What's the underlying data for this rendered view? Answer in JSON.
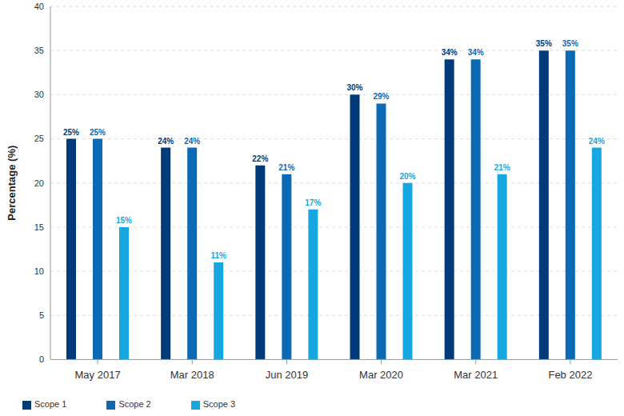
{
  "chart_data": {
    "type": "bar",
    "y_label": "Percentage (%)",
    "categories": [
      "May 2017",
      "Mar 2018",
      "Jun 2019",
      "Mar 2020",
      "Mar 2021",
      "Feb 2022"
    ],
    "series": [
      {
        "name": "Scope 1",
        "color": "#003a78",
        "values": [
          25,
          24,
          22,
          30,
          34,
          35
        ],
        "value_labels": [
          "25%",
          "24%",
          "22%",
          "30%",
          "34%",
          "35%"
        ]
      },
      {
        "name": "Scope 2",
        "color": "#0b6ab3",
        "values": [
          25,
          24,
          21,
          29,
          34,
          35
        ],
        "value_labels": [
          "25%",
          "24%",
          "21%",
          "29%",
          "34%",
          "35%"
        ]
      },
      {
        "name": "Scope 3",
        "color": "#17a7e0",
        "values": [
          15,
          11,
          17,
          20,
          21,
          24
        ],
        "value_labels": [
          "15%",
          "11%",
          "17%",
          "20%",
          "21%",
          "24%"
        ]
      }
    ],
    "ylim": [
      0,
      40
    ],
    "yticks": [
      0,
      5,
      10,
      15,
      20,
      25,
      30,
      35,
      40
    ],
    "grid": true,
    "legend": "lower left",
    "data_labels": true
  }
}
